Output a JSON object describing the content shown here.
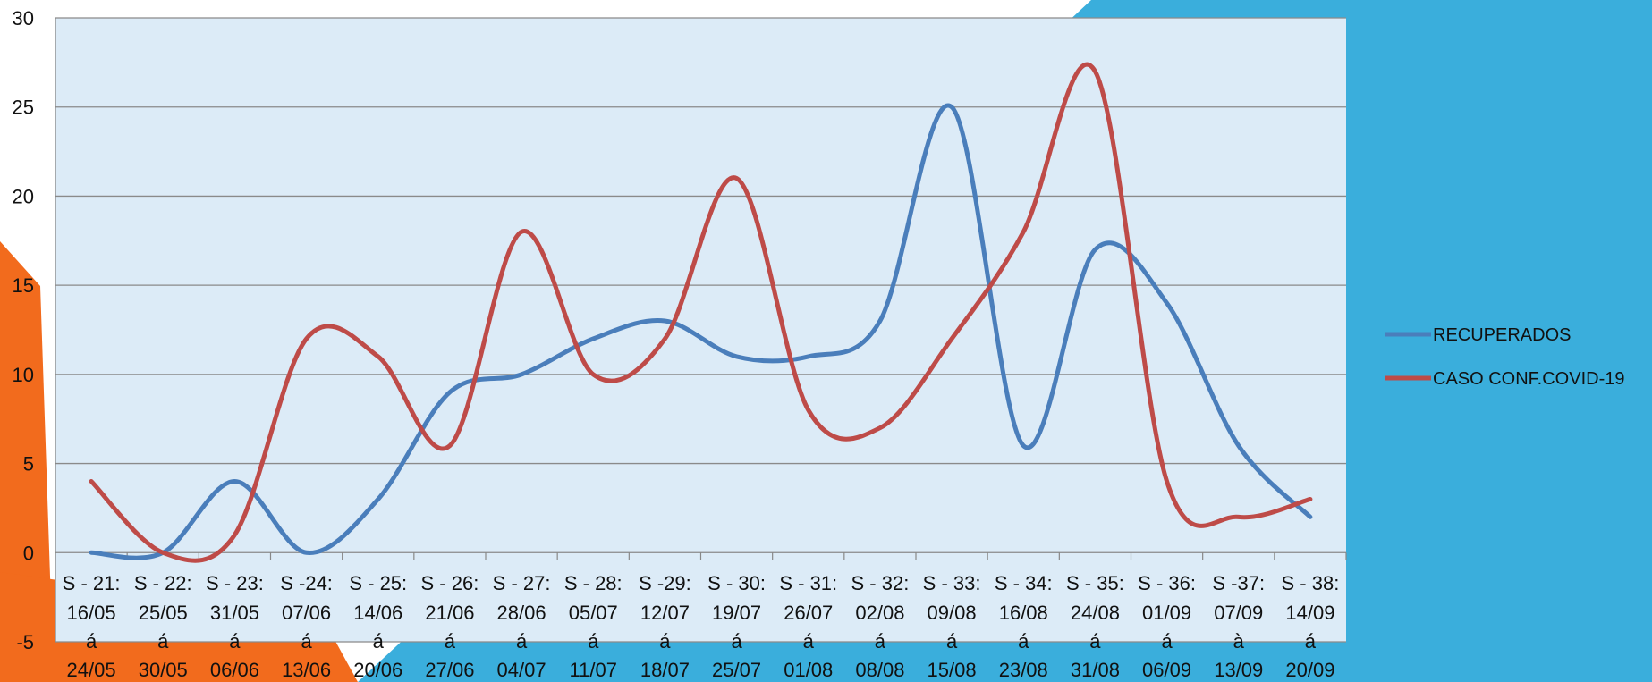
{
  "theme": {
    "slide_blue": "#3AAEDC",
    "slide_orange": "#F26B1D",
    "plot_bg": "#DCEBF7",
    "grid_color": "#8A8A8A",
    "axis_color": "#888888"
  },
  "chart_data": {
    "type": "line",
    "title": "",
    "xlabel": "",
    "ylabel": "",
    "ylim": [
      -5,
      30
    ],
    "yticks": [
      -5,
      0,
      5,
      10,
      15,
      20,
      25,
      30
    ],
    "grid": true,
    "legend_position": "right",
    "categories": [
      [
        "S - 21:",
        "16/05",
        "á",
        "24/05"
      ],
      [
        "S - 22:",
        "25/05",
        "á",
        "30/05"
      ],
      [
        "S - 23:",
        "31/05",
        "á",
        "06/06"
      ],
      [
        "S -24:",
        "07/06",
        "á",
        "13/06"
      ],
      [
        "S - 25:",
        "14/06",
        "á",
        "20/06"
      ],
      [
        "S - 26:",
        "21/06",
        "á",
        "27/06"
      ],
      [
        "S - 27:",
        "28/06",
        "á",
        "04/07"
      ],
      [
        "S - 28:",
        "05/07",
        "á",
        "11/07"
      ],
      [
        "S -29:",
        "12/07",
        "á",
        "18/07"
      ],
      [
        "S - 30:",
        "19/07",
        "á",
        "25/07"
      ],
      [
        "S - 31:",
        "26/07",
        "á",
        "01/08"
      ],
      [
        "S - 32:",
        "02/08",
        "á",
        "08/08"
      ],
      [
        "S - 33:",
        "09/08",
        "á",
        "15/08"
      ],
      [
        "S - 34:",
        "16/08",
        "á",
        "23/08"
      ],
      [
        "S - 35:",
        "24/08",
        "á",
        "31/08"
      ],
      [
        "S - 36:",
        "01/09",
        "á",
        "06/09"
      ],
      [
        "S -37:",
        "07/09",
        "à",
        "13/09"
      ],
      [
        "S - 38:",
        "14/09",
        "á",
        "20/09"
      ]
    ],
    "series": [
      {
        "name": "RECUPERADOS",
        "color": "#4A7EBB",
        "values": [
          0,
          0,
          4,
          0,
          3,
          9,
          10,
          12,
          13,
          11,
          11,
          13,
          25,
          6,
          17,
          14,
          6,
          2
        ]
      },
      {
        "name": "CASO CONF.COVID-19",
        "color": "#BE4B48",
        "values": [
          4,
          0,
          1,
          12,
          11,
          6,
          18,
          10,
          12,
          21,
          8,
          7,
          12,
          18,
          27,
          4,
          2,
          3
        ]
      }
    ]
  }
}
